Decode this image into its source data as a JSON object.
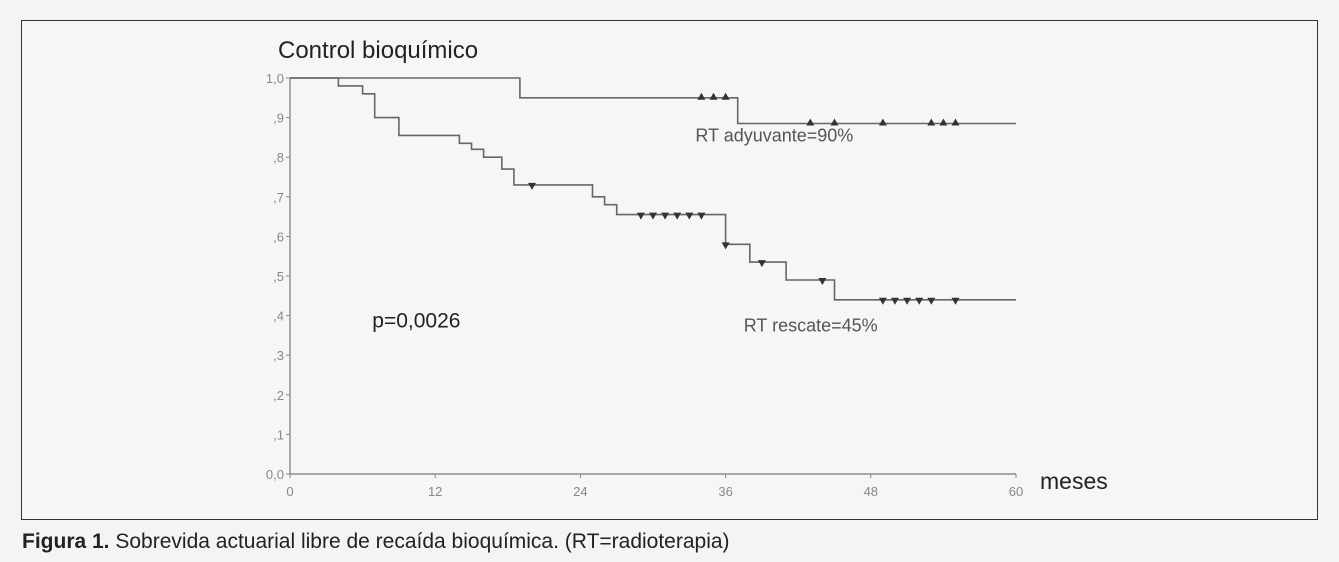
{
  "chart_data": {
    "type": "line",
    "subtype": "kaplan-meier step",
    "title": "Control bioquímico",
    "xlabel": "meses",
    "ylabel": "",
    "xlim": [
      0,
      60
    ],
    "ylim": [
      0,
      1
    ],
    "x_ticks": [
      "0",
      "12",
      "24",
      "36",
      "48",
      "60"
    ],
    "x_tick_values": [
      0,
      12,
      24,
      36,
      48,
      60
    ],
    "y_ticks": [
      "0,0",
      ",1",
      ",2",
      ",3",
      ",4",
      ",5",
      ",6",
      ",7",
      ",8",
      ",9",
      "1,0"
    ],
    "y_tick_values": [
      0,
      0.1,
      0.2,
      0.3,
      0.4,
      0.5,
      0.6,
      0.7,
      0.8,
      0.9,
      1.0
    ],
    "grid": false,
    "series": [
      {
        "name": "RT adyuvante",
        "steps": [
          [
            0,
            1.0
          ],
          [
            19,
            1.0
          ],
          [
            19,
            0.95
          ],
          [
            37,
            0.95
          ],
          [
            37,
            0.885
          ],
          [
            60,
            0.885
          ]
        ],
        "censored": [
          [
            34,
            0.95
          ],
          [
            35,
            0.95
          ],
          [
            36,
            0.95
          ],
          [
            43,
            0.885
          ],
          [
            45,
            0.885
          ],
          [
            49,
            0.885
          ],
          [
            53,
            0.885
          ],
          [
            54,
            0.885
          ],
          [
            55,
            0.885
          ]
        ],
        "censor_marker": "up-triangle"
      },
      {
        "name": "RT rescate",
        "steps": [
          [
            0,
            1.0
          ],
          [
            4,
            1.0
          ],
          [
            4,
            0.98
          ],
          [
            6,
            0.98
          ],
          [
            6,
            0.96
          ],
          [
            7,
            0.96
          ],
          [
            7,
            0.9
          ],
          [
            9,
            0.9
          ],
          [
            9,
            0.855
          ],
          [
            14,
            0.855
          ],
          [
            14,
            0.835
          ],
          [
            15,
            0.835
          ],
          [
            15,
            0.82
          ],
          [
            16,
            0.82
          ],
          [
            16,
            0.8
          ],
          [
            17.5,
            0.8
          ],
          [
            17.5,
            0.77
          ],
          [
            18.5,
            0.77
          ],
          [
            18.5,
            0.73
          ],
          [
            25,
            0.73
          ],
          [
            25,
            0.7
          ],
          [
            26,
            0.7
          ],
          [
            26,
            0.68
          ],
          [
            27,
            0.68
          ],
          [
            27,
            0.655
          ],
          [
            36,
            0.655
          ],
          [
            36,
            0.58
          ],
          [
            38,
            0.58
          ],
          [
            38,
            0.535
          ],
          [
            41,
            0.535
          ],
          [
            41,
            0.49
          ],
          [
            45,
            0.49
          ],
          [
            45,
            0.44
          ],
          [
            60,
            0.44
          ]
        ],
        "censored": [
          [
            20,
            0.73
          ],
          [
            29,
            0.655
          ],
          [
            30,
            0.655
          ],
          [
            31,
            0.655
          ],
          [
            32,
            0.655
          ],
          [
            33,
            0.655
          ],
          [
            34,
            0.655
          ],
          [
            36,
            0.58
          ],
          [
            39,
            0.535
          ],
          [
            44,
            0.49
          ],
          [
            49,
            0.44
          ],
          [
            50,
            0.44
          ],
          [
            51,
            0.44
          ],
          [
            52,
            0.44
          ],
          [
            53,
            0.44
          ],
          [
            55,
            0.44
          ]
        ],
        "censor_marker": "down-triangle"
      }
    ],
    "annotations": [
      {
        "text": "RT adyuvante=90%",
        "x": 33.5,
        "y": 0.84
      },
      {
        "text": "RT rescate=45%",
        "x": 37.5,
        "y": 0.36
      },
      {
        "text": "p=0,0026",
        "x": 6.8,
        "y": 0.37
      }
    ]
  },
  "caption": {
    "label": "Figura 1.",
    "text": " Sobrevida actuarial libre de recaída bioquímica. (RT=radioterapia)"
  }
}
